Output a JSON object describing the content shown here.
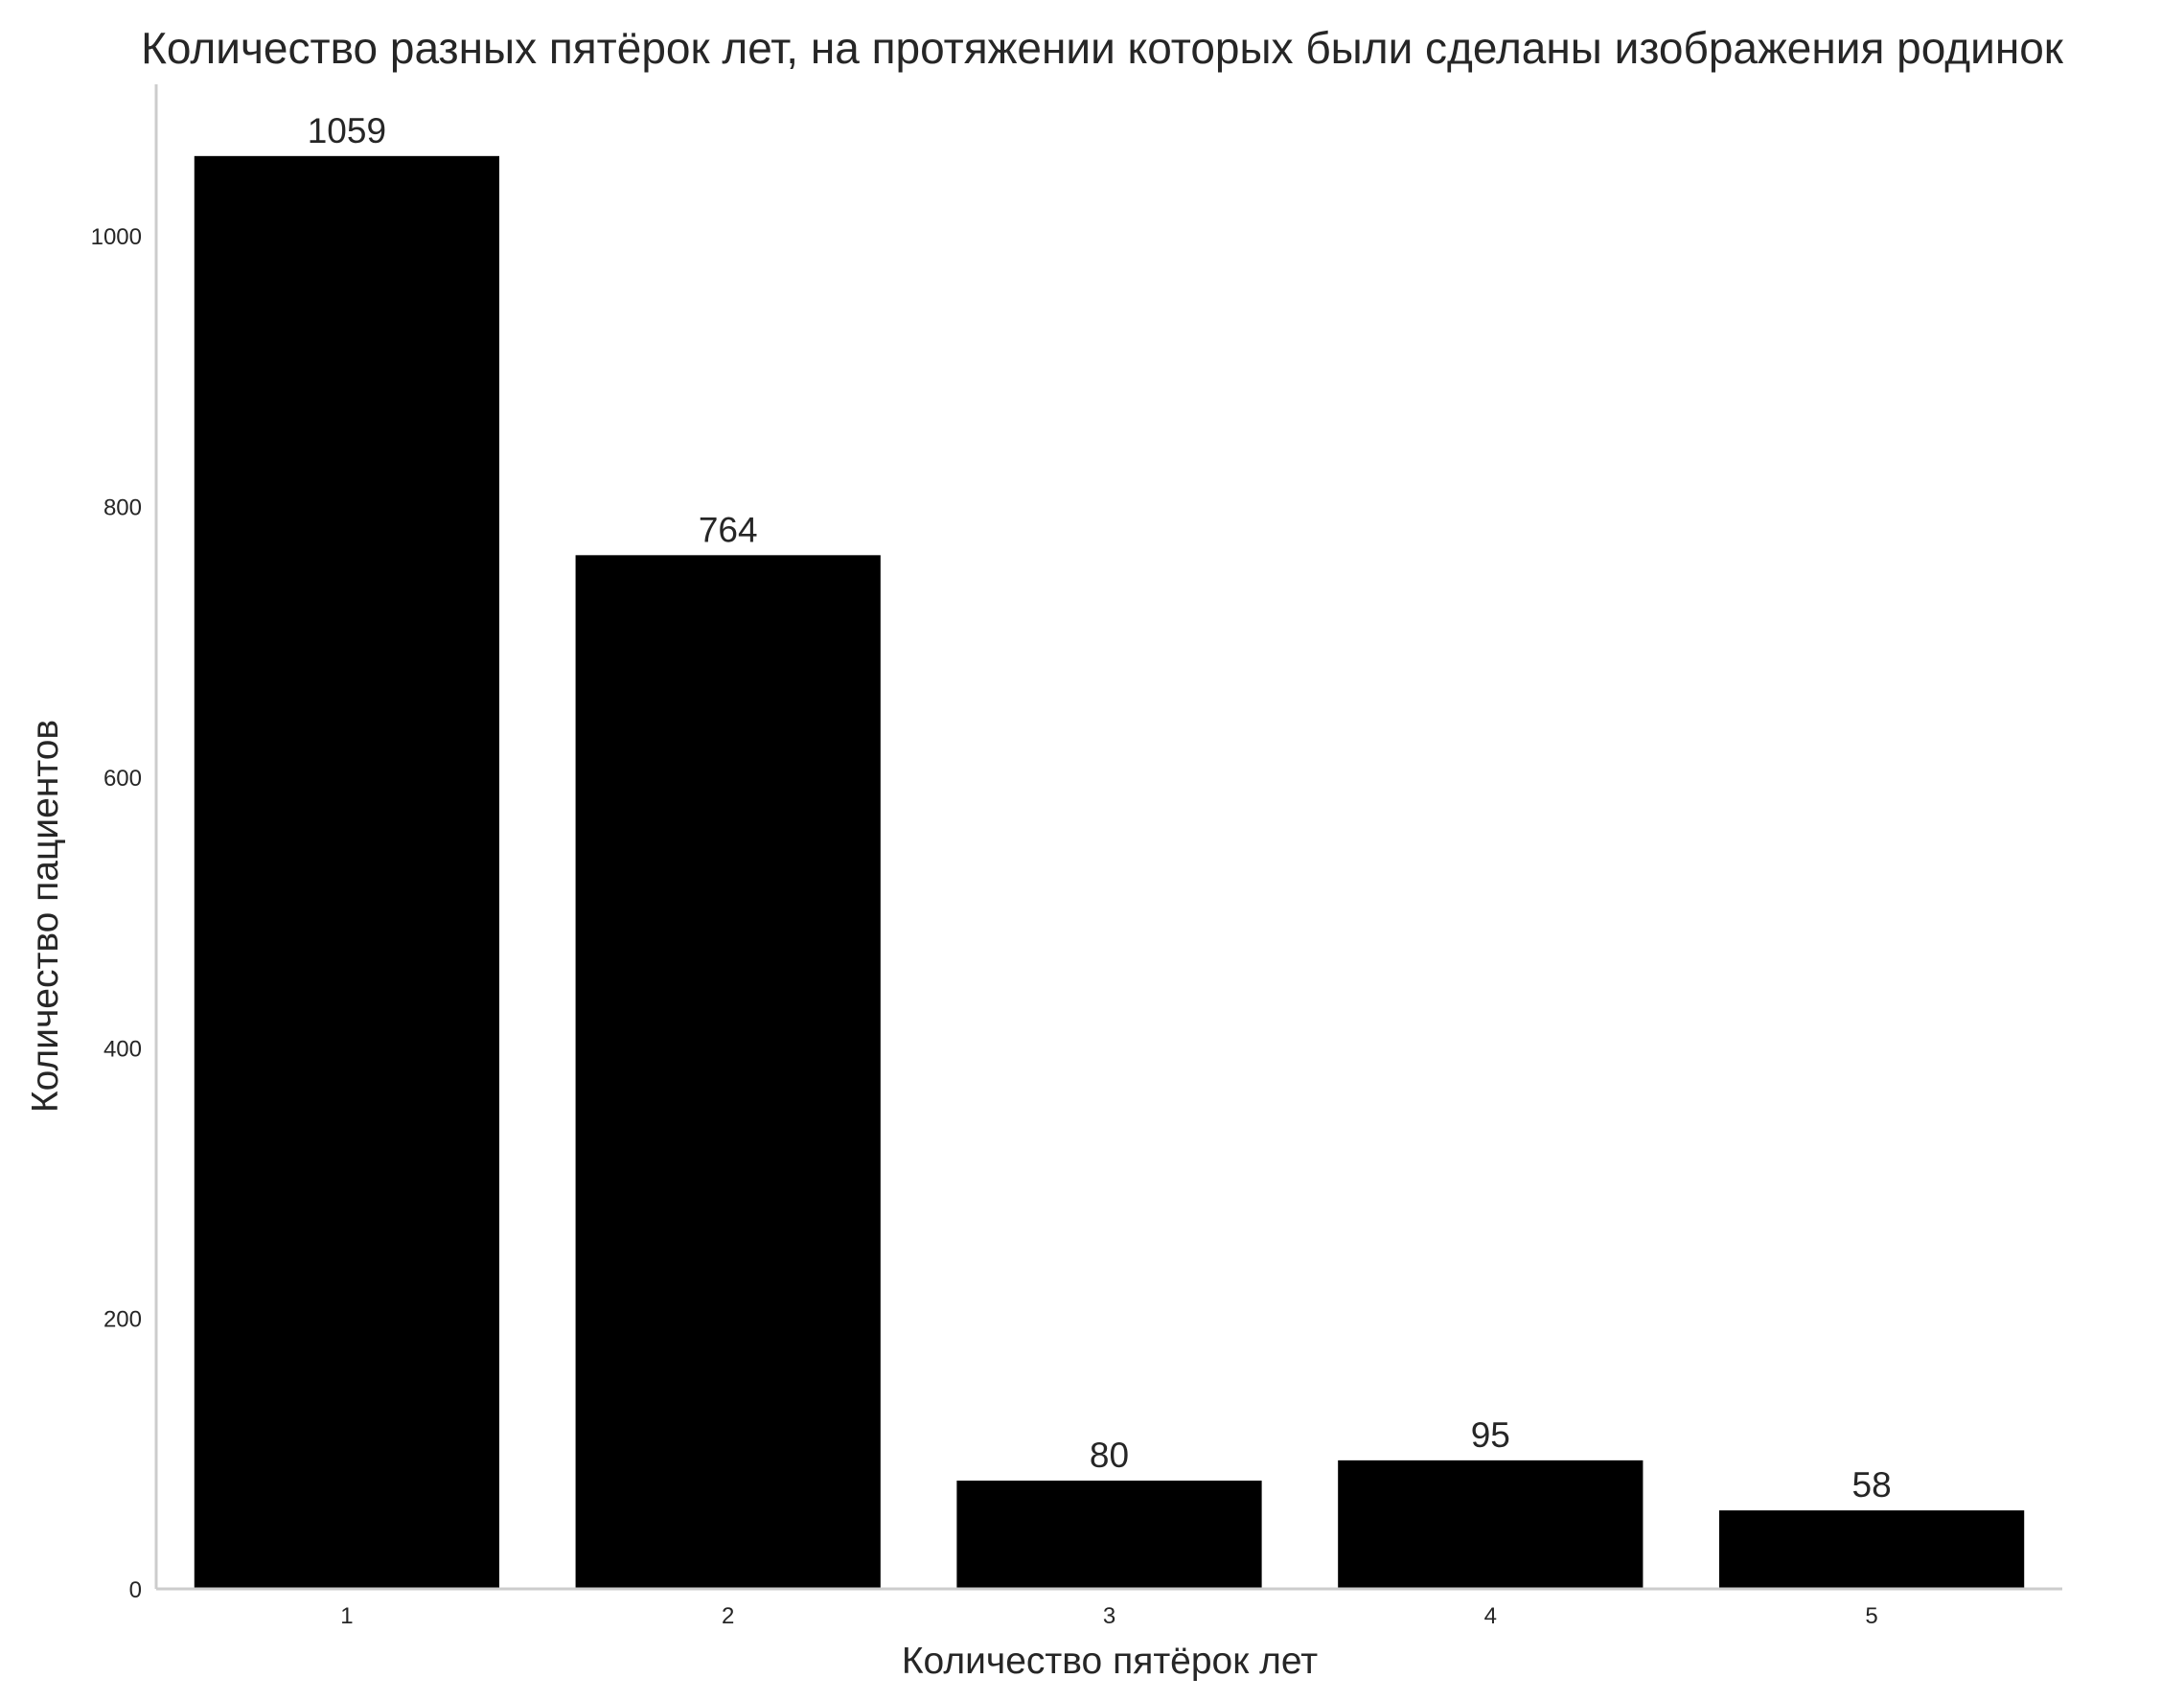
{
  "chart_data": {
    "type": "bar",
    "title": "Количество разных пятёрок лет, на протяжении которых были сделаны изображения родинок",
    "xlabel": "Количество пятёрок лет",
    "ylabel": "Количество пациентов",
    "categories": [
      "1",
      "2",
      "3",
      "4",
      "5"
    ],
    "values": [
      1059,
      764,
      80,
      95,
      58
    ],
    "data_labels": [
      "1059",
      "764",
      "80",
      "95",
      "58"
    ],
    "yticks": [
      0,
      200,
      400,
      600,
      800,
      1000
    ],
    "ytick_labels": [
      "0",
      "200",
      "400",
      "600",
      "800",
      "1000"
    ],
    "ylim": [
      0,
      1112
    ],
    "grid": false,
    "bar_color": "#000000",
    "spine_color": "#cccccc"
  }
}
